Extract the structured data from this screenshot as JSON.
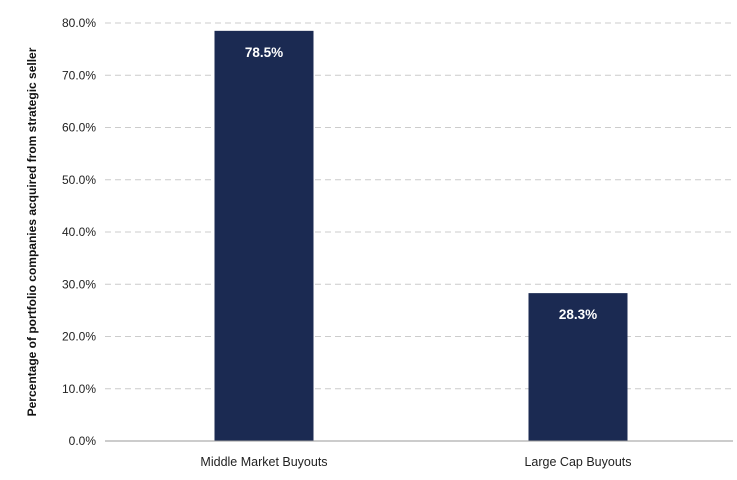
{
  "chart_data": {
    "type": "bar",
    "title": "",
    "xlabel": "",
    "ylabel": "Percentage of portfolio companies acquired from strategic seller",
    "categories": [
      "Middle Market Buyouts",
      "Large Cap Buyouts"
    ],
    "values": [
      78.5,
      28.3
    ],
    "value_labels": [
      "78.5%",
      "28.3%"
    ],
    "ylim": [
      0,
      80
    ],
    "y_ticks": [
      0,
      10,
      20,
      30,
      40,
      50,
      60,
      70,
      80
    ],
    "y_tick_labels": [
      "0.0%",
      "10.0%",
      "20.0%",
      "30.0%",
      "40.0%",
      "50.0%",
      "60.0%",
      "70.0%",
      "80.0%"
    ],
    "grid": "horizontal dashed",
    "legend": "none",
    "bar_color": "#1b2a52",
    "grid_color": "#cccccc",
    "axis_color": "#999999"
  }
}
